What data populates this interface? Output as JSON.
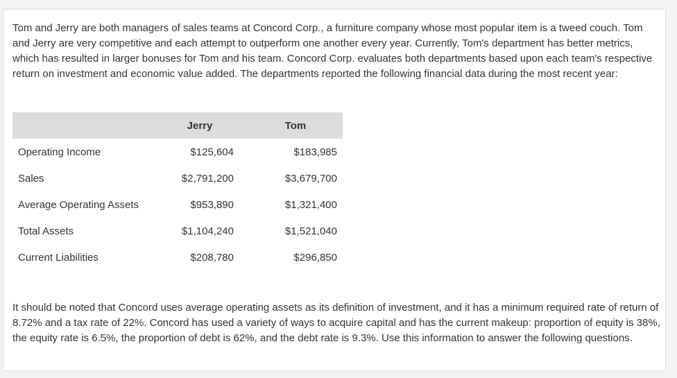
{
  "intro_text": "Tom and Jerry are both managers of sales teams at Concord Corp., a furniture company whose most popular item is a tweed couch. Tom and Jerry are very competitive and each attempt to outperform one another every year. Currently, Tom's department has better metrics, which has resulted in larger bonuses for Tom and his team. Concord Corp. evaluates both departments based upon each team's respective return on investment and economic value added. The departments reported the following financial data during the most recent year:",
  "table": {
    "headers": [
      "",
      "Jerry",
      "Tom"
    ],
    "rows": [
      {
        "label": "Operating Income",
        "jerry": "$125,604",
        "tom": "$183,985"
      },
      {
        "label": "Sales",
        "jerry": "$2,791,200",
        "tom": "$3,679,700"
      },
      {
        "label": "Average Operating Assets",
        "jerry": "$953,890",
        "tom": "$1,321,400"
      },
      {
        "label": "Total Assets",
        "jerry": "$1,104,240",
        "tom": "$1,521,040"
      },
      {
        "label": "Current Liabilities",
        "jerry": "$208,780",
        "tom": "$296,850"
      }
    ]
  },
  "outro_text": "It should be noted that Concord uses average operating assets as its definition of investment, and it has a minimum required rate of return of 8.72% and a tax rate of 22%. Concord has used a variety of ways to acquire capital and has the current makeup: proportion of equity is 38%, the equity rate is 6.5%, the proportion of debt is 62%, and the debt rate is 9.3%. Use this information to answer the following questions."
}
